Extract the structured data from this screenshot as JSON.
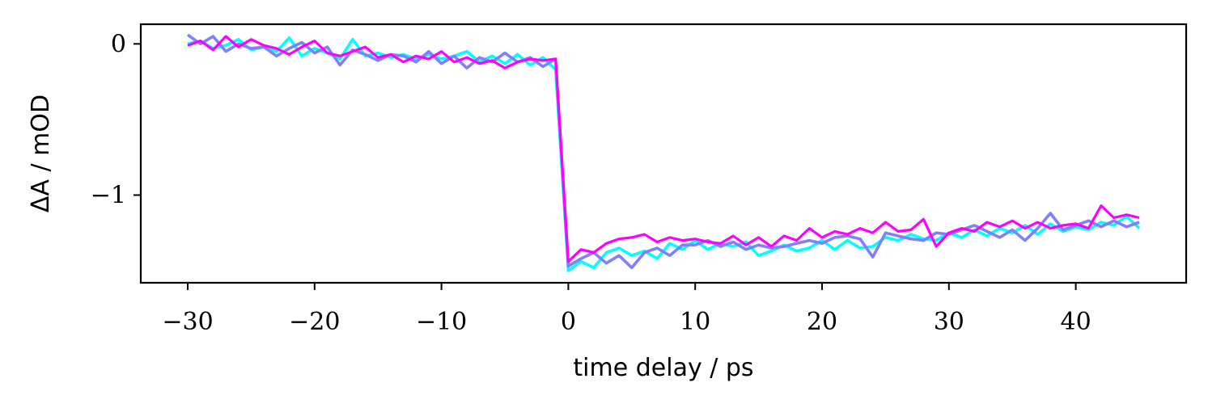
{
  "chart_data": {
    "type": "line",
    "xlabel": "time delay / ps",
    "ylabel": "ΔA / mOD",
    "xlim": [
      -33.7,
      48.7
    ],
    "ylim": [
      -1.58,
      0.13
    ],
    "x_ticks": [
      -30,
      -20,
      -10,
      0,
      10,
      20,
      30,
      40
    ],
    "x_tick_labels": [
      "−30",
      "−20",
      "−10",
      "0",
      "10",
      "20",
      "30",
      "40"
    ],
    "y_ticks": [
      0,
      -1
    ],
    "y_tick_labels": [
      "0",
      "−1"
    ],
    "grid": false,
    "legend": "none",
    "series": [
      {
        "color": "#00ffff",
        "x": [
          -30,
          -29,
          -28,
          -27,
          -26,
          -25,
          -24,
          -23,
          -22,
          -21,
          -20,
          -19,
          -18,
          -17,
          -16,
          -15,
          -14,
          -13,
          -12,
          -11,
          -10,
          -9,
          -8,
          -7,
          -6,
          -5,
          -4,
          -3,
          -2,
          -1,
          0,
          1,
          2,
          3,
          4,
          5,
          6,
          7,
          8,
          9,
          10,
          11,
          12,
          13,
          14,
          15,
          16,
          17,
          18,
          19,
          20,
          21,
          22,
          23,
          24,
          25,
          26,
          27,
          28,
          29,
          30,
          31,
          32,
          33,
          34,
          35,
          36,
          37,
          38,
          39,
          40,
          41,
          42,
          43,
          44,
          45
        ],
        "y": [
          0.0,
          0.02,
          -0.03,
          -0.01,
          0.03,
          -0.04,
          -0.02,
          -0.05,
          0.04,
          -0.08,
          -0.03,
          -0.06,
          -0.1,
          0.03,
          -0.08,
          -0.06,
          -0.09,
          -0.07,
          -0.1,
          -0.07,
          -0.1,
          -0.08,
          -0.05,
          -0.12,
          -0.08,
          -0.13,
          -0.07,
          -0.14,
          -0.09,
          -0.17,
          -1.5,
          -1.44,
          -1.48,
          -1.38,
          -1.35,
          -1.4,
          -1.37,
          -1.42,
          -1.32,
          -1.36,
          -1.3,
          -1.36,
          -1.32,
          -1.34,
          -1.31,
          -1.4,
          -1.37,
          -1.33,
          -1.37,
          -1.35,
          -1.3,
          -1.36,
          -1.3,
          -1.35,
          -1.34,
          -1.28,
          -1.3,
          -1.26,
          -1.29,
          -1.3,
          -1.25,
          -1.28,
          -1.23,
          -1.27,
          -1.22,
          -1.25,
          -1.2,
          -1.26,
          -1.19,
          -1.24,
          -1.21,
          -1.23,
          -1.18,
          -1.2,
          -1.14,
          -1.22
        ]
      },
      {
        "color": "#8080ff",
        "x": [
          -30,
          -29,
          -28,
          -27,
          -26,
          -25,
          -24,
          -23,
          -22,
          -21,
          -20,
          -19,
          -18,
          -17,
          -16,
          -15,
          -14,
          -13,
          -12,
          -11,
          -10,
          -9,
          -8,
          -7,
          -6,
          -5,
          -4,
          -3,
          -2,
          -1,
          0,
          1,
          2,
          3,
          4,
          5,
          6,
          7,
          8,
          9,
          10,
          11,
          12,
          13,
          14,
          15,
          16,
          17,
          18,
          19,
          20,
          21,
          22,
          23,
          24,
          25,
          26,
          27,
          28,
          29,
          30,
          31,
          32,
          33,
          34,
          35,
          36,
          37,
          38,
          39,
          40,
          41,
          42,
          43,
          44,
          45
        ],
        "y": [
          0.06,
          0.0,
          0.05,
          -0.05,
          0.0,
          -0.03,
          -0.02,
          -0.08,
          -0.03,
          0.01,
          -0.06,
          -0.02,
          -0.14,
          -0.04,
          -0.07,
          -0.11,
          -0.07,
          -0.08,
          -0.12,
          -0.05,
          -0.13,
          -0.08,
          -0.16,
          -0.09,
          -0.12,
          -0.06,
          -0.12,
          -0.09,
          -0.15,
          -0.1,
          -1.47,
          -1.42,
          -1.38,
          -1.45,
          -1.4,
          -1.48,
          -1.38,
          -1.35,
          -1.4,
          -1.33,
          -1.33,
          -1.3,
          -1.34,
          -1.31,
          -1.36,
          -1.33,
          -1.35,
          -1.34,
          -1.32,
          -1.3,
          -1.32,
          -1.28,
          -1.27,
          -1.29,
          -1.41,
          -1.25,
          -1.27,
          -1.29,
          -1.3,
          -1.25,
          -1.26,
          -1.23,
          -1.2,
          -1.24,
          -1.28,
          -1.23,
          -1.3,
          -1.22,
          -1.12,
          -1.23,
          -1.2,
          -1.17,
          -1.21,
          -1.17,
          -1.21,
          -1.18
        ]
      },
      {
        "color": "#ff00ff",
        "x": [
          -30,
          -29,
          -28,
          -27,
          -26,
          -25,
          -24,
          -23,
          -22,
          -21,
          -20,
          -19,
          -18,
          -17,
          -16,
          -15,
          -14,
          -13,
          -12,
          -11,
          -10,
          -9,
          -8,
          -7,
          -6,
          -5,
          -4,
          -3,
          -2,
          -1,
          0,
          1,
          2,
          3,
          4,
          5,
          6,
          7,
          8,
          9,
          10,
          11,
          12,
          13,
          14,
          15,
          16,
          17,
          18,
          19,
          20,
          21,
          22,
          23,
          24,
          25,
          26,
          27,
          28,
          29,
          30,
          31,
          32,
          33,
          34,
          35,
          36,
          37,
          38,
          39,
          40,
          41,
          42,
          43,
          44,
          45
        ],
        "y": [
          -0.01,
          0.02,
          -0.04,
          0.05,
          -0.02,
          0.03,
          -0.01,
          -0.03,
          -0.07,
          -0.02,
          0.02,
          -0.06,
          -0.08,
          -0.05,
          -0.02,
          -0.09,
          -0.07,
          -0.12,
          -0.08,
          -0.1,
          -0.05,
          -0.12,
          -0.09,
          -0.13,
          -0.11,
          -0.16,
          -0.12,
          -0.1,
          -0.11,
          -0.1,
          -1.44,
          -1.36,
          -1.38,
          -1.32,
          -1.29,
          -1.28,
          -1.26,
          -1.31,
          -1.28,
          -1.3,
          -1.29,
          -1.31,
          -1.32,
          -1.27,
          -1.33,
          -1.28,
          -1.34,
          -1.27,
          -1.3,
          -1.22,
          -1.28,
          -1.24,
          -1.26,
          -1.22,
          -1.25,
          -1.18,
          -1.24,
          -1.23,
          -1.16,
          -1.34,
          -1.25,
          -1.22,
          -1.24,
          -1.18,
          -1.21,
          -1.17,
          -1.22,
          -1.18,
          -1.22,
          -1.2,
          -1.19,
          -1.22,
          -1.07,
          -1.15,
          -1.13,
          -1.15
        ]
      }
    ]
  }
}
